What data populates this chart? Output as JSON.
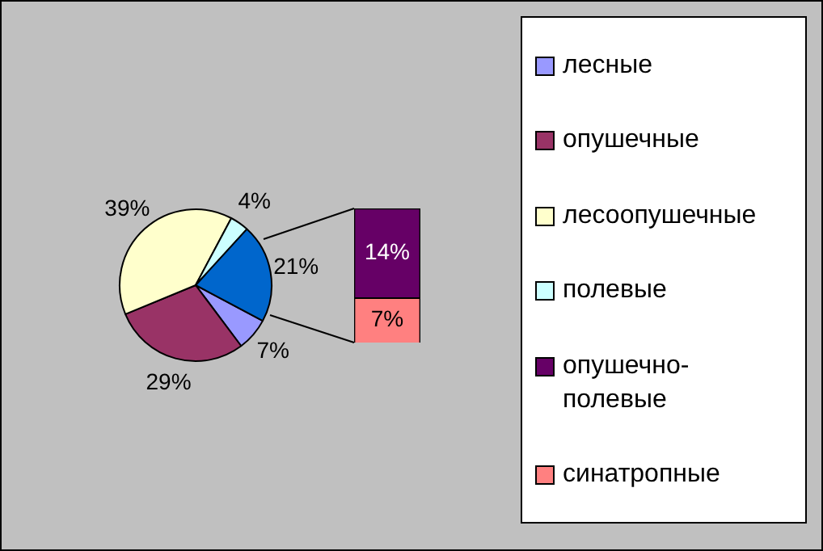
{
  "chart_data": [
    {
      "type": "pie",
      "categories": [
        "лесные",
        "опушечные",
        "лесоопушечные",
        "полевые",
        null
      ],
      "values": [
        7,
        29,
        39,
        4,
        21
      ],
      "colors": [
        "#9999ff",
        "#993366",
        "#ffffcc",
        "#ccffff",
        "#0066cc"
      ],
      "value_labels": [
        "7%",
        "29%",
        "39%",
        "4%",
        "21%"
      ],
      "legend": "right"
    },
    {
      "type": "bar",
      "stacked": true,
      "categories": [
        null
      ],
      "series": [
        {
          "name": "синатропные",
          "color": "#ff8080",
          "values": [
            7
          ],
          "value_labels": [
            "7%"
          ]
        },
        {
          "name": "опушечно-полевые",
          "color": "#660066",
          "values": [
            14
          ],
          "value_labels": [
            "14%"
          ]
        }
      ],
      "legend": "right"
    }
  ]
}
